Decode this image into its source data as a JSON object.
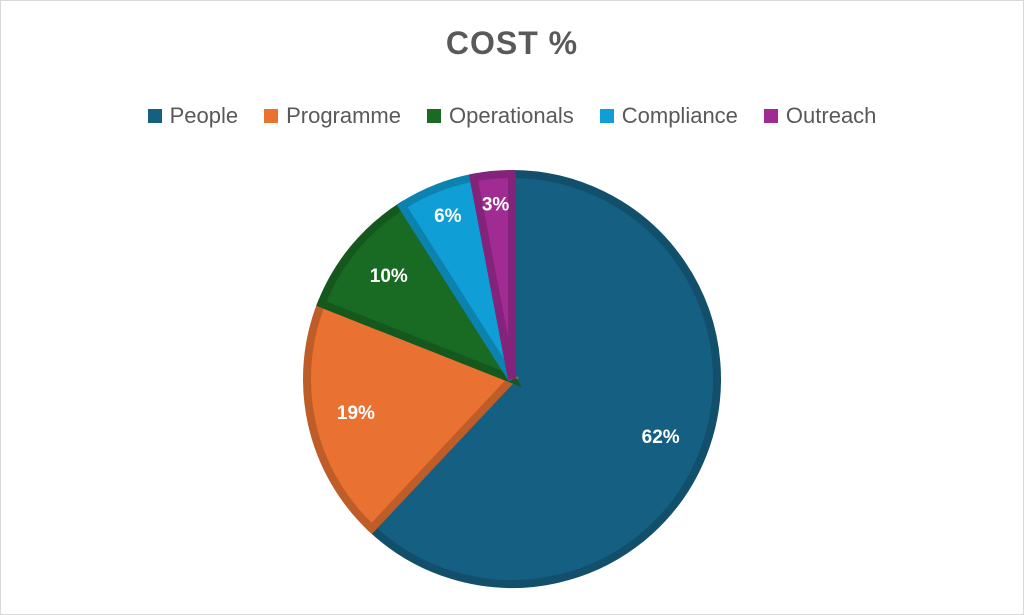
{
  "chart_data": {
    "type": "pie",
    "title": "COST %",
    "categories": [
      "People",
      "Programme",
      "Operationals",
      "Compliance",
      "Outreach"
    ],
    "values": [
      62,
      19,
      10,
      6,
      3
    ],
    "labels": [
      "62%",
      "19%",
      "10%",
      "6%",
      "3%"
    ],
    "colors": [
      "#156082",
      "#e97132",
      "#196b24",
      "#0f9ed5",
      "#a02b93"
    ],
    "legend_position": "top"
  }
}
